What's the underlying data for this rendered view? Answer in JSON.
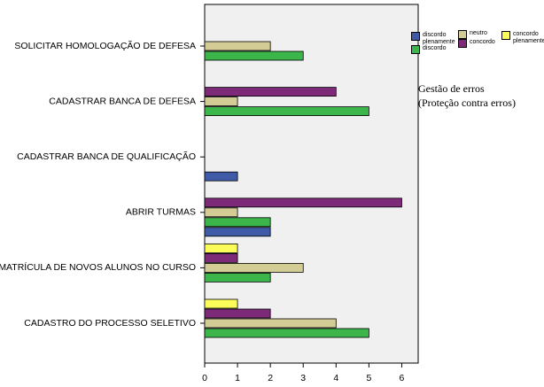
{
  "chart_data": {
    "type": "hbar",
    "annotation": [
      "Gestão de erros",
      "(Proteção contra erros)"
    ],
    "categories": [
      "SOLICITAR HOMOLOGAÇÃO DE DEFESA",
      "CADASTRAR BANCA DE DEFESA",
      "CADASTRAR BANCA DE QUALIFICAÇÃO",
      "ABRIR TURMAS",
      "MATRÍCULA DE NOVOS ALUNOS NO CURSO",
      "CADASTRO DO PROCESSO SELETIVO"
    ],
    "series": [
      {
        "name": "discordo plenamente",
        "color": "#3f5ba8",
        "values": [
          null,
          null,
          1,
          2,
          null,
          null
        ]
      },
      {
        "name": "discordo",
        "color": "#3cb54a",
        "values": [
          3,
          5,
          null,
          2,
          2,
          5
        ]
      },
      {
        "name": "neutro",
        "color": "#d3cc95",
        "values": [
          2,
          1,
          null,
          1,
          3,
          4
        ]
      },
      {
        "name": "concordo",
        "color": "#7d2a78",
        "values": [
          null,
          4,
          null,
          6,
          1,
          2
        ]
      },
      {
        "name": "concordo plenamente",
        "color": "#fbfb5a",
        "values": [
          null,
          null,
          null,
          null,
          1,
          1
        ]
      }
    ],
    "xlim": [
      0,
      6.5
    ],
    "xticks": [
      0,
      1,
      2,
      3,
      4,
      5,
      6
    ]
  }
}
